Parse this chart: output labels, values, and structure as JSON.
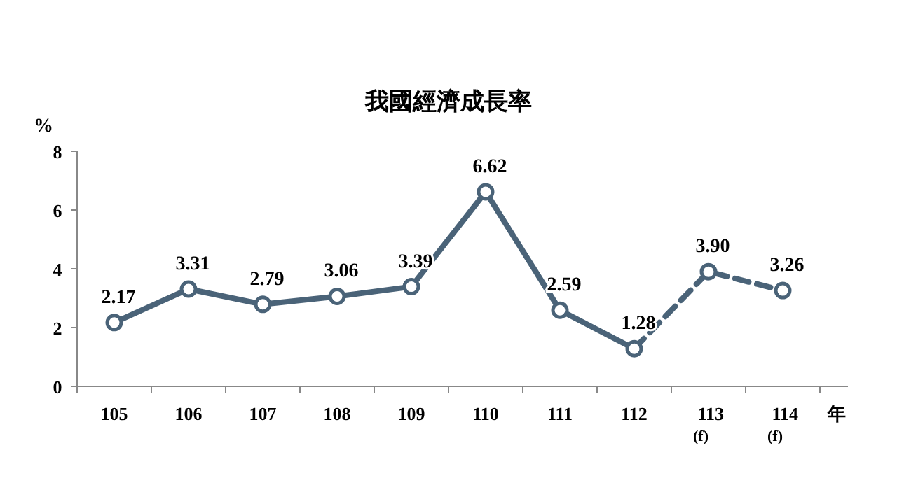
{
  "chart_data": {
    "type": "line",
    "title": "我國經濟成長率",
    "ylabel": "%",
    "xlabel": "年",
    "categories": [
      "105",
      "106",
      "107",
      "108",
      "109",
      "110",
      "111",
      "112",
      "113$_{(f)}$",
      "114$_{(f)}$"
    ],
    "series": [
      {
        "color": "#4a6378",
        "values": [
          2.17,
          3.31,
          2.79,
          3.06,
          3.39,
          6.62,
          2.59,
          1.28,
          null,
          null
        ],
        "value_labels": [
          "2.17",
          "3.31",
          "2.79",
          "3.06",
          "3.39",
          "6.62",
          "2.59",
          "1.28",
          null,
          null
        ]
      },
      {
        "color": "#4a6378",
        "line_style": "dashed",
        "values": [
          null,
          null,
          null,
          null,
          null,
          null,
          null,
          1.28,
          3.9,
          3.26
        ],
        "value_labels": [
          null,
          null,
          null,
          null,
          null,
          null,
          null,
          null,
          "3.90",
          "3.26"
        ]
      }
    ],
    "ylim": [
      0,
      8
    ],
    "yticks": [
      0,
      2,
      4,
      6,
      8
    ],
    "marker": "circle",
    "line_style": "solid",
    "grid": false
  }
}
